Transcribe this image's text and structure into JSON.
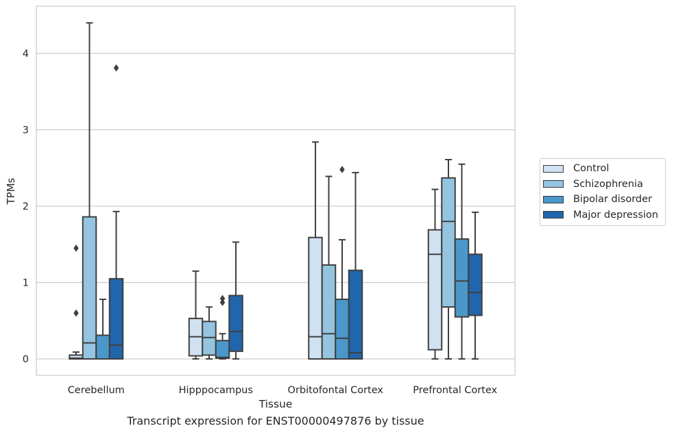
{
  "caption": "Transcript expression for ENST00000497876 by tissue",
  "chart_data": {
    "type": "box",
    "xlabel": "Tissue",
    "ylabel": "TPMs",
    "ylim": [
      -0.21,
      4.6
    ],
    "yticks": [
      0,
      1,
      2,
      3,
      4
    ],
    "grid": "horizontal",
    "legend_position": "right",
    "categories": [
      "Cerebellum",
      "Hipppocampus",
      "Orbitofontal Cortex",
      "Prefrontal Cortex"
    ],
    "series": [
      {
        "name": "Control",
        "color": "#d0e1f2",
        "boxes": [
          {
            "whisker_low": 0.0,
            "q1": 0.0,
            "median": 0.01,
            "q3": 0.05,
            "whisker_high": 0.09,
            "outliers": [
              1.45,
              0.6
            ]
          },
          {
            "whisker_low": 0.0,
            "q1": 0.04,
            "median": 0.29,
            "q3": 0.53,
            "whisker_high": 1.15,
            "outliers": []
          },
          {
            "whisker_low": 0.0,
            "q1": 0.0,
            "median": 0.29,
            "q3": 1.59,
            "whisker_high": 2.84,
            "outliers": []
          },
          {
            "whisker_low": 0.0,
            "q1": 0.12,
            "median": 1.37,
            "q3": 1.69,
            "whisker_high": 2.22,
            "outliers": []
          }
        ]
      },
      {
        "name": "Schizophrenia",
        "color": "#94c4df",
        "boxes": [
          {
            "whisker_low": 0.0,
            "q1": 0.0,
            "median": 0.21,
            "q3": 1.86,
            "whisker_high": 4.4,
            "outliers": []
          },
          {
            "whisker_low": 0.0,
            "q1": 0.05,
            "median": 0.28,
            "q3": 0.49,
            "whisker_high": 0.68,
            "outliers": []
          },
          {
            "whisker_low": 0.0,
            "q1": 0.0,
            "median": 0.33,
            "q3": 1.23,
            "whisker_high": 2.39,
            "outliers": []
          },
          {
            "whisker_low": 0.0,
            "q1": 0.68,
            "median": 1.8,
            "q3": 2.37,
            "whisker_high": 2.61,
            "outliers": []
          }
        ]
      },
      {
        "name": "Bipolar disorder",
        "color": "#4a98c9",
        "boxes": [
          {
            "whisker_low": 0.0,
            "q1": 0.0,
            "median": 0.0,
            "q3": 0.31,
            "whisker_high": 0.78,
            "outliers": []
          },
          {
            "whisker_low": 0.0,
            "q1": 0.01,
            "median": 0.02,
            "q3": 0.24,
            "whisker_high": 0.33,
            "outliers": [
              0.79,
              0.74
            ]
          },
          {
            "whisker_low": 0.0,
            "q1": 0.0,
            "median": 0.27,
            "q3": 0.78,
            "whisker_high": 1.56,
            "outliers": [
              2.48
            ]
          },
          {
            "whisker_low": 0.0,
            "q1": 0.55,
            "median": 1.02,
            "q3": 1.57,
            "whisker_high": 2.55,
            "outliers": []
          }
        ]
      },
      {
        "name": "Major depression",
        "color": "#2166ac",
        "boxes": [
          {
            "whisker_low": 0.0,
            "q1": 0.0,
            "median": 0.18,
            "q3": 1.05,
            "whisker_high": 1.93,
            "outliers": [
              3.81
            ]
          },
          {
            "whisker_low": 0.0,
            "q1": 0.1,
            "median": 0.36,
            "q3": 0.83,
            "whisker_high": 1.53,
            "outliers": []
          },
          {
            "whisker_low": 0.0,
            "q1": 0.0,
            "median": 0.08,
            "q3": 1.16,
            "whisker_high": 2.44,
            "outliers": []
          },
          {
            "whisker_low": 0.0,
            "q1": 0.57,
            "median": 0.87,
            "q3": 1.37,
            "whisker_high": 1.92,
            "outliers": []
          }
        ]
      }
    ]
  }
}
